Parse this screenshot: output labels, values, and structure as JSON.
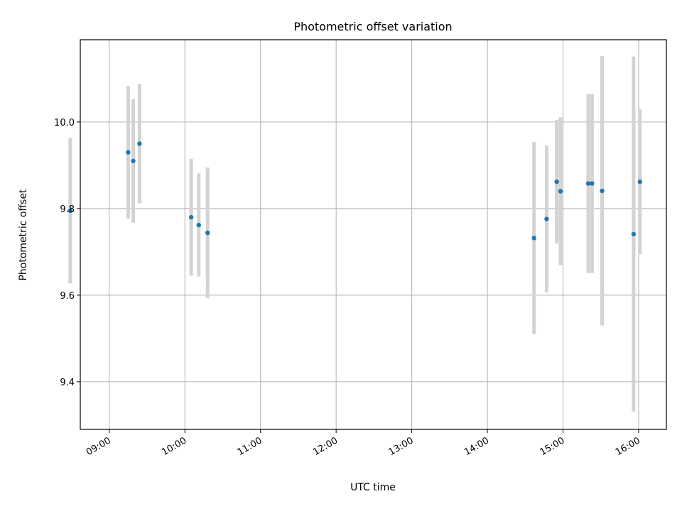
{
  "chart_data": {
    "type": "scatter",
    "title": "Photometric offset variation",
    "xlabel": "UTC time",
    "ylabel": "Photometric offset",
    "x_unit": "UTC HH:MM",
    "xlim": [
      "08:37",
      "16:22"
    ],
    "ylim": [
      9.29,
      10.19
    ],
    "x_ticks": [
      "09:00",
      "10:00",
      "11:00",
      "12:00",
      "13:00",
      "14:00",
      "15:00",
      "16:00"
    ],
    "y_ticks": [
      9.4,
      9.6,
      9.8,
      10.0
    ],
    "y_tick_labels": [
      "9.4",
      "9.6",
      "9.8",
      "10.0"
    ],
    "grid": true,
    "point_color": "#1f77b4",
    "errorbar_color": "#d3d3d3",
    "points": [
      {
        "x": "08:29",
        "y": 9.795,
        "err": 0.168
      },
      {
        "x": "09:15",
        "y": 9.93,
        "err": 0.153
      },
      {
        "x": "09:19",
        "y": 9.91,
        "err": 0.143
      },
      {
        "x": "09:24",
        "y": 9.95,
        "err": 0.138
      },
      {
        "x": "10:05",
        "y": 9.78,
        "err": 0.135
      },
      {
        "x": "10:11",
        "y": 9.762,
        "err": 0.119
      },
      {
        "x": "10:18",
        "y": 9.744,
        "err": 0.151
      },
      {
        "x": "14:37",
        "y": 9.732,
        "err": 0.222
      },
      {
        "x": "14:47",
        "y": 9.776,
        "err": 0.17
      },
      {
        "x": "14:55",
        "y": 9.862,
        "err": 0.143
      },
      {
        "x": "14:58",
        "y": 9.84,
        "err": 0.171
      },
      {
        "x": "15:20",
        "y": 9.858,
        "err": 0.207
      },
      {
        "x": "15:23",
        "y": 9.858,
        "err": 0.207
      },
      {
        "x": "15:31",
        "y": 9.841,
        "err": 0.311
      },
      {
        "x": "15:56",
        "y": 9.741,
        "err": 0.41
      },
      {
        "x": "16:01",
        "y": 9.862,
        "err": 0.168
      }
    ]
  }
}
